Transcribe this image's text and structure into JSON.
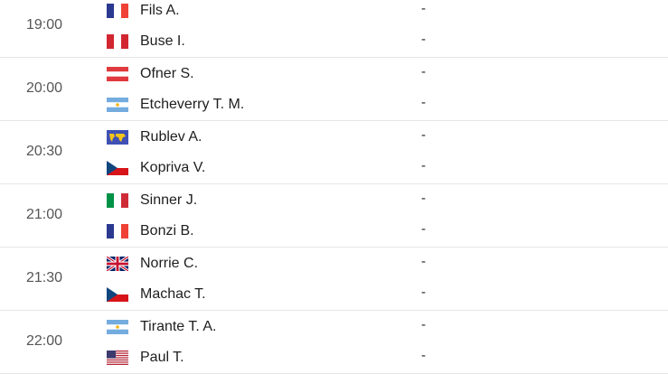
{
  "matches": [
    {
      "time": "19:00",
      "players": [
        {
          "name": "Fils A.",
          "flag": "france",
          "score": "-"
        },
        {
          "name": "Buse I.",
          "flag": "peru",
          "score": "-"
        }
      ]
    },
    {
      "time": "20:00",
      "players": [
        {
          "name": "Ofner S.",
          "flag": "austria",
          "score": "-"
        },
        {
          "name": "Etcheverry T. M.",
          "flag": "argentina",
          "score": "-"
        }
      ]
    },
    {
      "time": "20:30",
      "players": [
        {
          "name": "Rublev A.",
          "flag": "world",
          "score": "-"
        },
        {
          "name": "Kopriva V.",
          "flag": "czechia",
          "score": "-"
        }
      ]
    },
    {
      "time": "21:00",
      "players": [
        {
          "name": "Sinner J.",
          "flag": "italy",
          "score": "-"
        },
        {
          "name": "Bonzi B.",
          "flag": "france",
          "score": "-"
        }
      ]
    },
    {
      "time": "21:30",
      "players": [
        {
          "name": "Norrie C.",
          "flag": "uk",
          "score": "-"
        },
        {
          "name": "Machac T.",
          "flag": "czechia",
          "score": "-"
        }
      ]
    },
    {
      "time": "22:00",
      "players": [
        {
          "name": "Tirante T. A.",
          "flag": "argentina",
          "score": "-"
        },
        {
          "name": "Paul T.",
          "flag": "usa",
          "score": "-"
        }
      ]
    }
  ]
}
